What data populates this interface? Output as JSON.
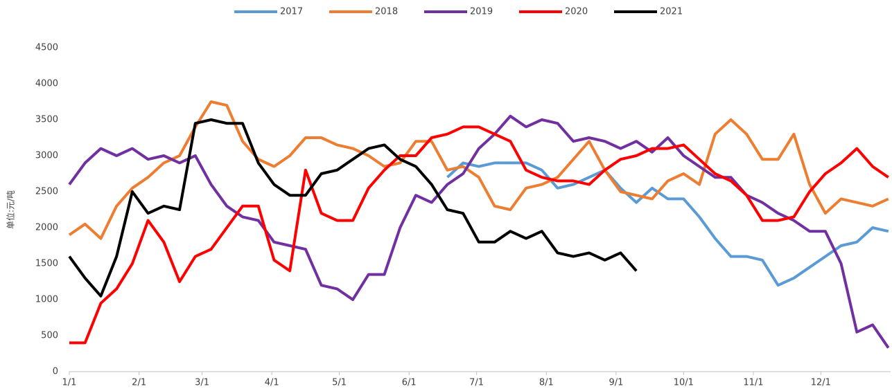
{
  "chart_data": {
    "type": "line",
    "y_label": "单位:元/吨",
    "x": [
      0,
      7,
      14,
      21,
      28,
      35,
      42,
      49,
      56,
      63,
      70,
      77,
      84,
      91,
      98,
      105,
      112,
      119,
      126,
      133,
      140,
      147,
      154,
      161,
      168,
      175,
      182,
      189,
      196,
      203,
      210,
      217,
      224,
      231,
      238,
      245,
      252,
      259,
      266,
      273,
      280,
      287,
      294,
      301,
      308,
      315,
      322,
      329,
      336,
      343,
      350,
      357,
      364
    ],
    "xlim": [
      0,
      365
    ],
    "xticks": [
      {
        "value": 0,
        "label": "1/1"
      },
      {
        "value": 31,
        "label": "2/1"
      },
      {
        "value": 59,
        "label": "3/1"
      },
      {
        "value": 90,
        "label": "4/1"
      },
      {
        "value": 120,
        "label": "5/1"
      },
      {
        "value": 151,
        "label": "6/1"
      },
      {
        "value": 181,
        "label": "7/1"
      },
      {
        "value": 212,
        "label": "8/1"
      },
      {
        "value": 243,
        "label": "9/1"
      },
      {
        "value": 273,
        "label": "10/1"
      },
      {
        "value": 304,
        "label": "11/1"
      },
      {
        "value": 334,
        "label": "12/1"
      }
    ],
    "ylim": [
      0,
      4500
    ],
    "yticks": [
      0,
      500,
      1000,
      1500,
      2000,
      2500,
      3000,
      3500,
      4000,
      4500
    ],
    "grid": false,
    "legend": "top",
    "series": [
      {
        "name": "2017",
        "color": "#5b9bd5",
        "values": [
          null,
          null,
          null,
          null,
          null,
          null,
          null,
          null,
          null,
          null,
          null,
          null,
          null,
          null,
          null,
          null,
          null,
          null,
          null,
          null,
          null,
          null,
          null,
          null,
          2700,
          2900,
          2850,
          2900,
          2900,
          2900,
          2800,
          2550,
          2600,
          2700,
          2800,
          2550,
          2350,
          2550,
          2400,
          2400,
          2150,
          1850,
          1600,
          1600,
          1550,
          1200,
          1300,
          1450,
          1600,
          1750,
          1800,
          2000,
          1950
        ]
      },
      {
        "name": "2018",
        "color": "#ed7d31",
        "values": [
          1900,
          2050,
          1850,
          2300,
          2550,
          2700,
          2900,
          3000,
          3400,
          3750,
          3700,
          3200,
          2950,
          2850,
          3000,
          3250,
          3250,
          3150,
          3100,
          3000,
          2850,
          2900,
          3200,
          3200,
          2800,
          2850,
          2700,
          2300,
          2250,
          2550,
          2600,
          2700,
          2950,
          3200,
          2800,
          2500,
          2450,
          2400,
          2650,
          2750,
          2600,
          3300,
          3500,
          3300,
          2950,
          2950,
          3300,
          2600,
          2200,
          2400,
          2350,
          2300,
          2400
        ]
      },
      {
        "name": "2019",
        "color": "#7030a0",
        "values": [
          2600,
          2900,
          3100,
          3000,
          3100,
          2950,
          3000,
          2900,
          3000,
          2600,
          2300,
          2150,
          2100,
          1800,
          1750,
          1700,
          1200,
          1150,
          1000,
          1350,
          1350,
          2000,
          2450,
          2350,
          2600,
          2750,
          3100,
          3300,
          3550,
          3400,
          3500,
          3450,
          3200,
          3250,
          3200,
          3100,
          3200,
          3050,
          3250,
          3000,
          2850,
          2700,
          2700,
          2450,
          2350,
          2200,
          2100,
          1950,
          1950,
          1500,
          550,
          650,
          330
        ]
      },
      {
        "name": "2020",
        "color": "#ff0000",
        "values": [
          400,
          400,
          950,
          1150,
          1500,
          2100,
          1800,
          1250,
          1600,
          1700,
          2000,
          2300,
          2300,
          1550,
          1400,
          2800,
          2200,
          2100,
          2100,
          2550,
          2800,
          3000,
          3000,
          3250,
          3300,
          3400,
          3400,
          3300,
          3200,
          2800,
          2700,
          2650,
          2650,
          2600,
          2800,
          2950,
          3000,
          3100,
          3100,
          3150,
          2950,
          2750,
          2650,
          2450,
          2100,
          2100,
          2150,
          2500,
          2750,
          2900,
          3100,
          2850,
          2700
        ]
      },
      {
        "name": "2021",
        "color": "#000000",
        "values": [
          1600,
          1300,
          1050,
          1600,
          2500,
          2200,
          2300,
          2250,
          3450,
          3500,
          3450,
          3450,
          2900,
          2600,
          2450,
          2450,
          2750,
          2800,
          2950,
          3100,
          3150,
          2950,
          2850,
          2600,
          2250,
          2200,
          1800,
          1800,
          1950,
          1850,
          1950,
          1650,
          1600,
          1650,
          1550,
          1650,
          1400,
          null,
          null,
          null,
          null,
          null,
          null,
          null,
          null,
          null,
          null,
          null,
          null,
          null,
          null,
          null,
          null
        ]
      }
    ]
  }
}
